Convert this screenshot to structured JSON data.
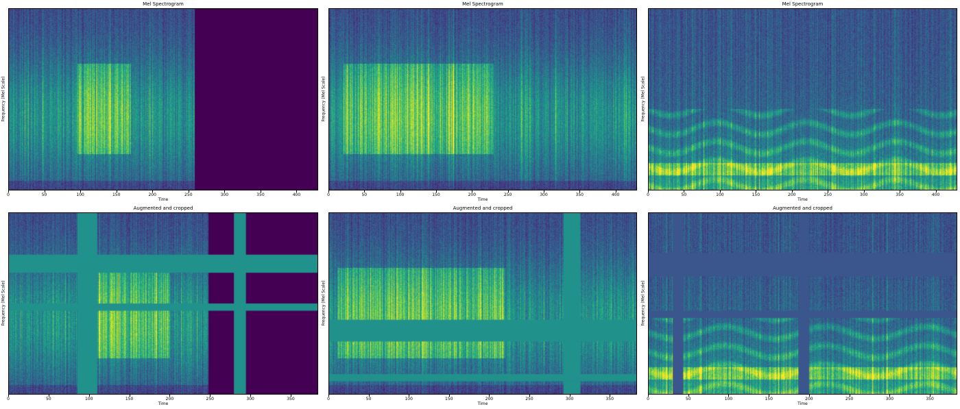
{
  "chart_data": [
    {
      "type": "heatmap",
      "colormap": "viridis",
      "title": "Mel Spectrogram",
      "xlabel": "Time",
      "ylabel": "Frequency (Mel Scale)",
      "xlim": [
        0,
        430
      ],
      "xticks": [
        0,
        50,
        100,
        150,
        200,
        250,
        300,
        350,
        400
      ],
      "signal_end_time": 258,
      "bright_region_time": [
        95,
        170
      ],
      "masks": {
        "time": [],
        "freq": []
      }
    },
    {
      "type": "heatmap",
      "colormap": "viridis",
      "title": "Mel Spectrogram",
      "xlabel": "Time",
      "ylabel": "Frequency (Mel Scale)",
      "xlim": [
        0,
        430
      ],
      "xticks": [
        0,
        50,
        100,
        150,
        200,
        250,
        300,
        350,
        400
      ],
      "signal_end_time": 430,
      "bright_region_time": [
        20,
        230
      ],
      "masks": {
        "time": [],
        "freq": []
      }
    },
    {
      "type": "heatmap",
      "colormap": "viridis",
      "title": "Mel Spectrogram",
      "xlabel": "Time",
      "ylabel": "Frequency (Mel Scale)",
      "xlim": [
        0,
        430
      ],
      "xticks": [
        0,
        50,
        100,
        150,
        200,
        250,
        300,
        350,
        400
      ],
      "signal_end_time": 430,
      "bright_region_time": [
        0,
        430
      ],
      "masks": {
        "time": [],
        "freq": []
      }
    },
    {
      "type": "heatmap",
      "colormap": "viridis",
      "title": "Augmented and cropped",
      "xlabel": "Time",
      "ylabel": "Frequency (Mel Scale)",
      "xlim": [
        0,
        384
      ],
      "xticks": [
        0,
        50,
        100,
        150,
        200,
        250,
        300,
        350
      ],
      "signal_end_time": 248,
      "bright_region_time": [
        90,
        200
      ],
      "masks": {
        "time": [
          [
            85,
            110
          ],
          [
            280,
            295
          ]
        ],
        "freq": [
          [
            0.77,
            0.67
          ],
          [
            0.5,
            0.46
          ]
        ]
      }
    },
    {
      "type": "heatmap",
      "colormap": "viridis",
      "title": "Augmented and cropped",
      "xlabel": "Time",
      "ylabel": "Frequency (Mel Scale)",
      "xlim": [
        0,
        384
      ],
      "xticks": [
        0,
        50,
        100,
        150,
        200,
        250,
        300,
        350
      ],
      "signal_end_time": 384,
      "bright_region_time": [
        10,
        220
      ],
      "masks": {
        "time": [
          [
            293,
            314
          ]
        ],
        "freq": [
          [
            0.41,
            0.29
          ],
          [
            0.11,
            0.07
          ]
        ]
      }
    },
    {
      "type": "heatmap",
      "colormap": "viridis",
      "title": "Augmented and cropped",
      "xlabel": "Time",
      "ylabel": "Frequency (Mel Scale)",
      "xlim": [
        0,
        384
      ],
      "xticks": [
        0,
        50,
        100,
        150,
        200,
        250,
        300,
        350
      ],
      "signal_end_time": 384,
      "bright_region_time": [
        0,
        384
      ],
      "masks": {
        "time": [
          [
            30,
            43
          ],
          [
            187,
            200
          ]
        ],
        "freq": [
          [
            0.78,
            0.65
          ],
          [
            0.46,
            0.42
          ]
        ]
      }
    }
  ]
}
